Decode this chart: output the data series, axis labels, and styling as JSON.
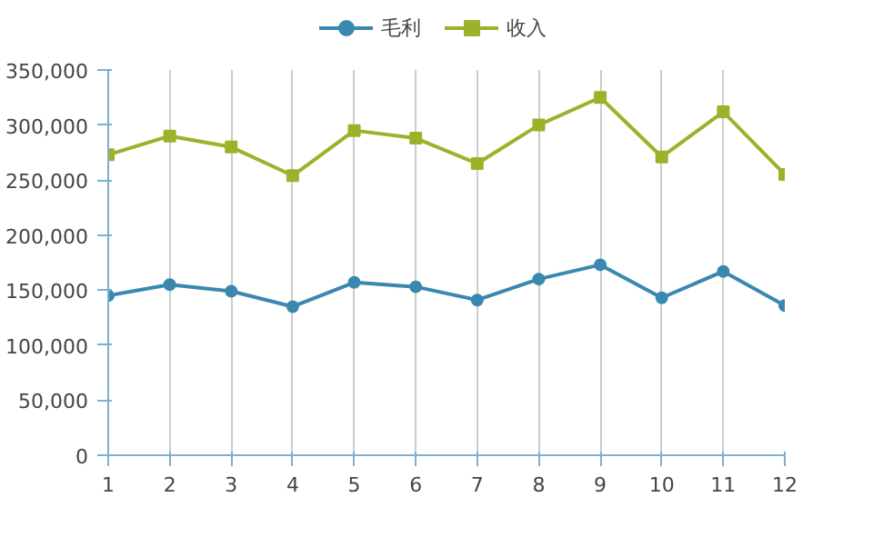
{
  "chart_data": {
    "type": "line",
    "x": [
      1,
      2,
      3,
      4,
      5,
      6,
      7,
      8,
      9,
      10,
      11,
      12
    ],
    "series": [
      {
        "name": "毛利",
        "color": "#3a88b0",
        "marker": "circle",
        "values": [
          145000,
          155000,
          149000,
          135000,
          157000,
          153000,
          141000,
          160000,
          173000,
          143000,
          167000,
          136000
        ]
      },
      {
        "name": "收入",
        "color": "#9cb22a",
        "marker": "square",
        "values": [
          273000,
          290000,
          280000,
          254000,
          295000,
          288000,
          265000,
          300000,
          325000,
          271000,
          312000,
          255000
        ]
      }
    ],
    "xlim": [
      1,
      12
    ],
    "xticks": [
      1,
      2,
      3,
      4,
      5,
      6,
      7,
      8,
      9,
      10,
      11,
      12
    ],
    "ylim": [
      0,
      350000
    ],
    "yticks": [
      {
        "value": 0,
        "label": "0"
      },
      {
        "value": 50000,
        "label": "50,000"
      },
      {
        "value": 100000,
        "label": "100,000"
      },
      {
        "value": 150000,
        "label": "150,000"
      },
      {
        "value": 200000,
        "label": "200,000"
      },
      {
        "value": 250000,
        "label": "250,000"
      },
      {
        "value": 300000,
        "label": "300,000"
      },
      {
        "value": 350000,
        "label": "350,000"
      }
    ],
    "grid": "x",
    "legend": "top",
    "line_style": "solid"
  }
}
